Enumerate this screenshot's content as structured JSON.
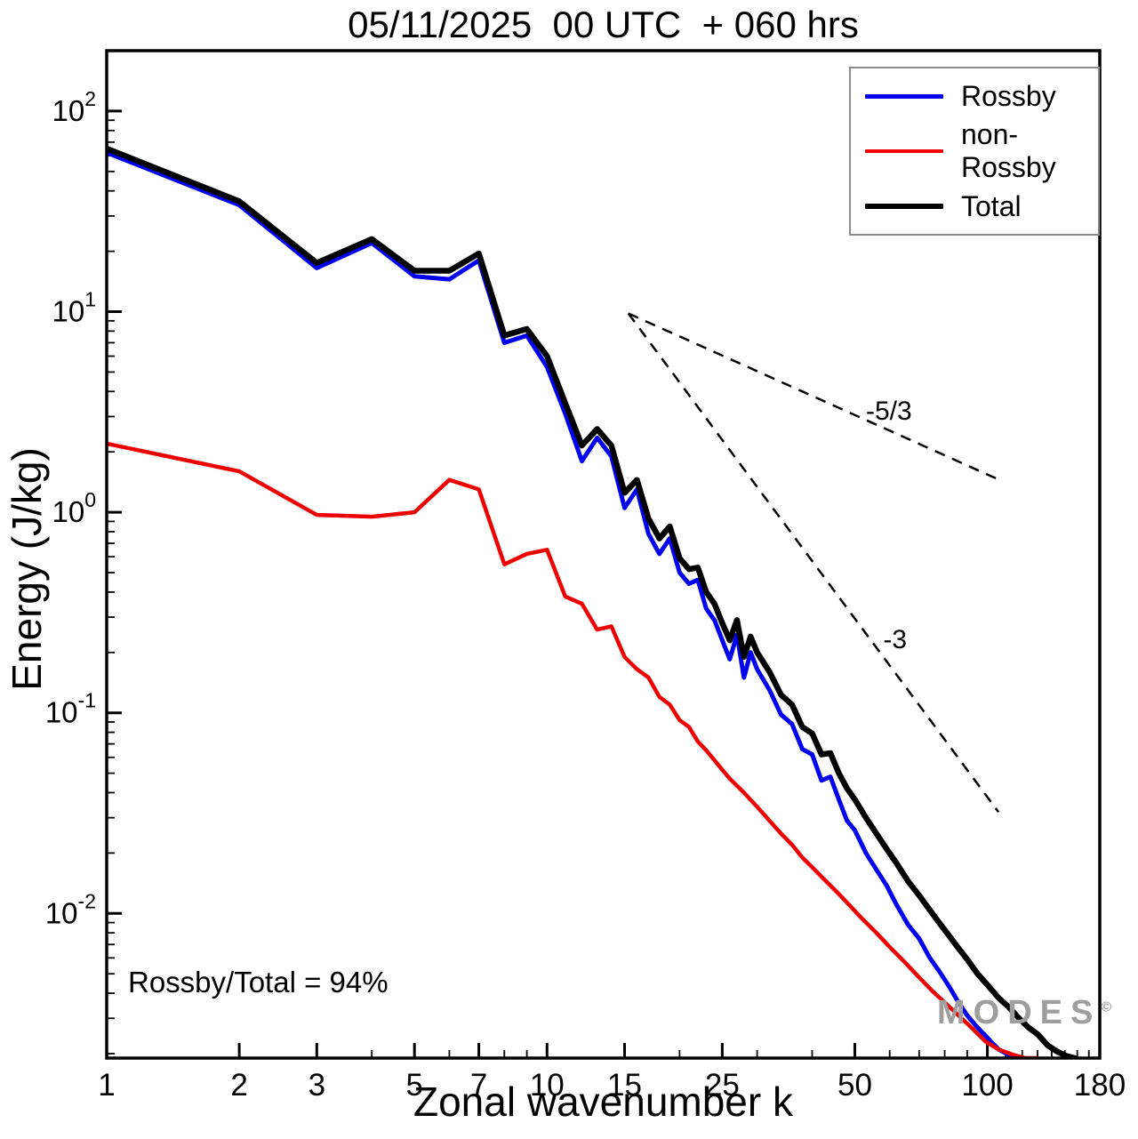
{
  "chart_data": {
    "type": "line",
    "title": "05/11/2025  00 UTC  + 060 hrs",
    "xlabel": "Zonal wavenumber k",
    "ylabel": "Energy (J/kg)",
    "xscale": "log",
    "yscale": "log",
    "xlim": [
      1,
      180
    ],
    "ylim": [
      0.0019,
      200
    ],
    "xticks": [
      1,
      2,
      3,
      5,
      7,
      10,
      15,
      25,
      50,
      100,
      180
    ],
    "ytick_exponents": [
      -2,
      -1,
      0,
      1,
      2
    ],
    "grid": false,
    "legend_position": "top-right",
    "annotation": "Rossby/Total = 94%",
    "series": [
      {
        "name": "Rossby",
        "color": "#0000ee",
        "line_width": 5,
        "points": [
          [
            1,
            62
          ],
          [
            2,
            34
          ],
          [
            3,
            16.5
          ],
          [
            4,
            22
          ],
          [
            5,
            15
          ],
          [
            6,
            14.5
          ],
          [
            7,
            18
          ],
          [
            8,
            7.0
          ],
          [
            9,
            7.6
          ],
          [
            10,
            5.3
          ],
          [
            11,
            3.1
          ],
          [
            12,
            1.8
          ],
          [
            13,
            2.35
          ],
          [
            14,
            1.9
          ],
          [
            15,
            1.05
          ],
          [
            16,
            1.3
          ],
          [
            17,
            0.78
          ],
          [
            18,
            0.62
          ],
          [
            19,
            0.74
          ],
          [
            20,
            0.5
          ],
          [
            21,
            0.44
          ],
          [
            22,
            0.46
          ],
          [
            23,
            0.33
          ],
          [
            24,
            0.29
          ],
          [
            25,
            0.23
          ],
          [
            26,
            0.185
          ],
          [
            27,
            0.245
          ],
          [
            28,
            0.15
          ],
          [
            29,
            0.2
          ],
          [
            30,
            0.165
          ],
          [
            32,
            0.13
          ],
          [
            34,
            0.098
          ],
          [
            36,
            0.088
          ],
          [
            38,
            0.066
          ],
          [
            40,
            0.062
          ],
          [
            42,
            0.046
          ],
          [
            44,
            0.048
          ],
          [
            46,
            0.037
          ],
          [
            48,
            0.029
          ],
          [
            50,
            0.026
          ],
          [
            53,
            0.02
          ],
          [
            56,
            0.0165
          ],
          [
            59,
            0.0138
          ],
          [
            62,
            0.0112
          ],
          [
            66,
            0.0088
          ],
          [
            70,
            0.0075
          ],
          [
            74,
            0.006
          ],
          [
            78,
            0.0051
          ],
          [
            82,
            0.0043
          ],
          [
            86,
            0.0036
          ],
          [
            90,
            0.0031
          ],
          [
            95,
            0.0027
          ],
          [
            100,
            0.0024
          ],
          [
            106,
            0.0021
          ],
          [
            112,
            0.00197
          ],
          [
            118,
            0.0019
          ]
        ]
      },
      {
        "name": "non-Rossby",
        "color": "#ee0000",
        "line_width": 4.5,
        "points": [
          [
            1,
            2.2
          ],
          [
            2,
            1.6
          ],
          [
            3,
            0.97
          ],
          [
            4,
            0.95
          ],
          [
            5,
            1.0
          ],
          [
            6,
            1.45
          ],
          [
            7,
            1.3
          ],
          [
            8,
            0.55
          ],
          [
            9,
            0.62
          ],
          [
            10,
            0.65
          ],
          [
            11,
            0.38
          ],
          [
            12,
            0.35
          ],
          [
            13,
            0.26
          ],
          [
            14,
            0.27
          ],
          [
            15,
            0.19
          ],
          [
            16,
            0.165
          ],
          [
            17,
            0.15
          ],
          [
            18,
            0.12
          ],
          [
            19,
            0.11
          ],
          [
            20,
            0.092
          ],
          [
            21,
            0.085
          ],
          [
            22,
            0.072
          ],
          [
            23,
            0.065
          ],
          [
            24,
            0.058
          ],
          [
            25,
            0.052
          ],
          [
            26,
            0.047
          ],
          [
            28,
            0.04
          ],
          [
            30,
            0.034
          ],
          [
            32,
            0.029
          ],
          [
            34,
            0.025
          ],
          [
            36,
            0.022
          ],
          [
            38,
            0.019
          ],
          [
            40,
            0.017
          ],
          [
            43,
            0.0145
          ],
          [
            46,
            0.0125
          ],
          [
            49,
            0.0108
          ],
          [
            52,
            0.0094
          ],
          [
            56,
            0.008
          ],
          [
            60,
            0.0068
          ],
          [
            65,
            0.0057
          ],
          [
            70,
            0.0048
          ],
          [
            75,
            0.0041
          ],
          [
            80,
            0.0036
          ],
          [
            86,
            0.0031
          ],
          [
            92,
            0.0027
          ],
          [
            99,
            0.0023
          ],
          [
            106,
            0.0021
          ],
          [
            114,
            0.00198
          ],
          [
            122,
            0.0019
          ],
          [
            130,
            0.0019
          ]
        ]
      },
      {
        "name": "Total",
        "color": "#000000",
        "line_width": 6.5,
        "points": [
          [
            1,
            65
          ],
          [
            2,
            35.5
          ],
          [
            3,
            17.5
          ],
          [
            4,
            23
          ],
          [
            5,
            16
          ],
          [
            6,
            16
          ],
          [
            7,
            19.5
          ],
          [
            8,
            7.6
          ],
          [
            9,
            8.2
          ],
          [
            10,
            6.0
          ],
          [
            11,
            3.5
          ],
          [
            12,
            2.15
          ],
          [
            13,
            2.6
          ],
          [
            14,
            2.15
          ],
          [
            15,
            1.25
          ],
          [
            16,
            1.45
          ],
          [
            17,
            0.93
          ],
          [
            18,
            0.74
          ],
          [
            19,
            0.85
          ],
          [
            20,
            0.59
          ],
          [
            21,
            0.52
          ],
          [
            22,
            0.53
          ],
          [
            23,
            0.4
          ],
          [
            24,
            0.35
          ],
          [
            25,
            0.28
          ],
          [
            26,
            0.23
          ],
          [
            27,
            0.29
          ],
          [
            28,
            0.19
          ],
          [
            29,
            0.24
          ],
          [
            30,
            0.2
          ],
          [
            32,
            0.16
          ],
          [
            34,
            0.123
          ],
          [
            36,
            0.11
          ],
          [
            38,
            0.085
          ],
          [
            40,
            0.079
          ],
          [
            42,
            0.062
          ],
          [
            44,
            0.063
          ],
          [
            46,
            0.05
          ],
          [
            48,
            0.042
          ],
          [
            50,
            0.037
          ],
          [
            53,
            0.03
          ],
          [
            56,
            0.025
          ],
          [
            59,
            0.021
          ],
          [
            62,
            0.018
          ],
          [
            66,
            0.0145
          ],
          [
            70,
            0.0123
          ],
          [
            74,
            0.0104
          ],
          [
            78,
            0.0089
          ],
          [
            82,
            0.0077
          ],
          [
            86,
            0.0067
          ],
          [
            90,
            0.0059
          ],
          [
            95,
            0.005
          ],
          [
            100,
            0.0044
          ],
          [
            106,
            0.0038
          ],
          [
            112,
            0.0034
          ],
          [
            118,
            0.003
          ],
          [
            124,
            0.0027
          ],
          [
            130,
            0.0025
          ],
          [
            137,
            0.0022
          ],
          [
            144,
            0.00205
          ],
          [
            151,
            0.00195
          ],
          [
            158,
            0.0019
          ]
        ]
      }
    ],
    "reference_lines": [
      {
        "label": "-5/3",
        "style": "dashed",
        "from": [
          15.3,
          9.8
        ],
        "to": [
          108,
          1.43
        ],
        "label_at": [
          53,
          2.9
        ]
      },
      {
        "label": "-3",
        "style": "dashed",
        "from": [
          15.3,
          9.8
        ],
        "to": [
          106,
          0.032
        ],
        "label_at": [
          58,
          0.21
        ]
      }
    ],
    "legend": {
      "entries": [
        {
          "label": "Rossby",
          "color": "#0000ee",
          "line_width": 5
        },
        {
          "label": "non-Rossby",
          "color": "#ee0000",
          "line_width": 4.5
        },
        {
          "label": "Total",
          "color": "#000000",
          "line_width": 6
        }
      ]
    }
  },
  "watermark": {
    "text": "MODES",
    "mark": "©"
  }
}
